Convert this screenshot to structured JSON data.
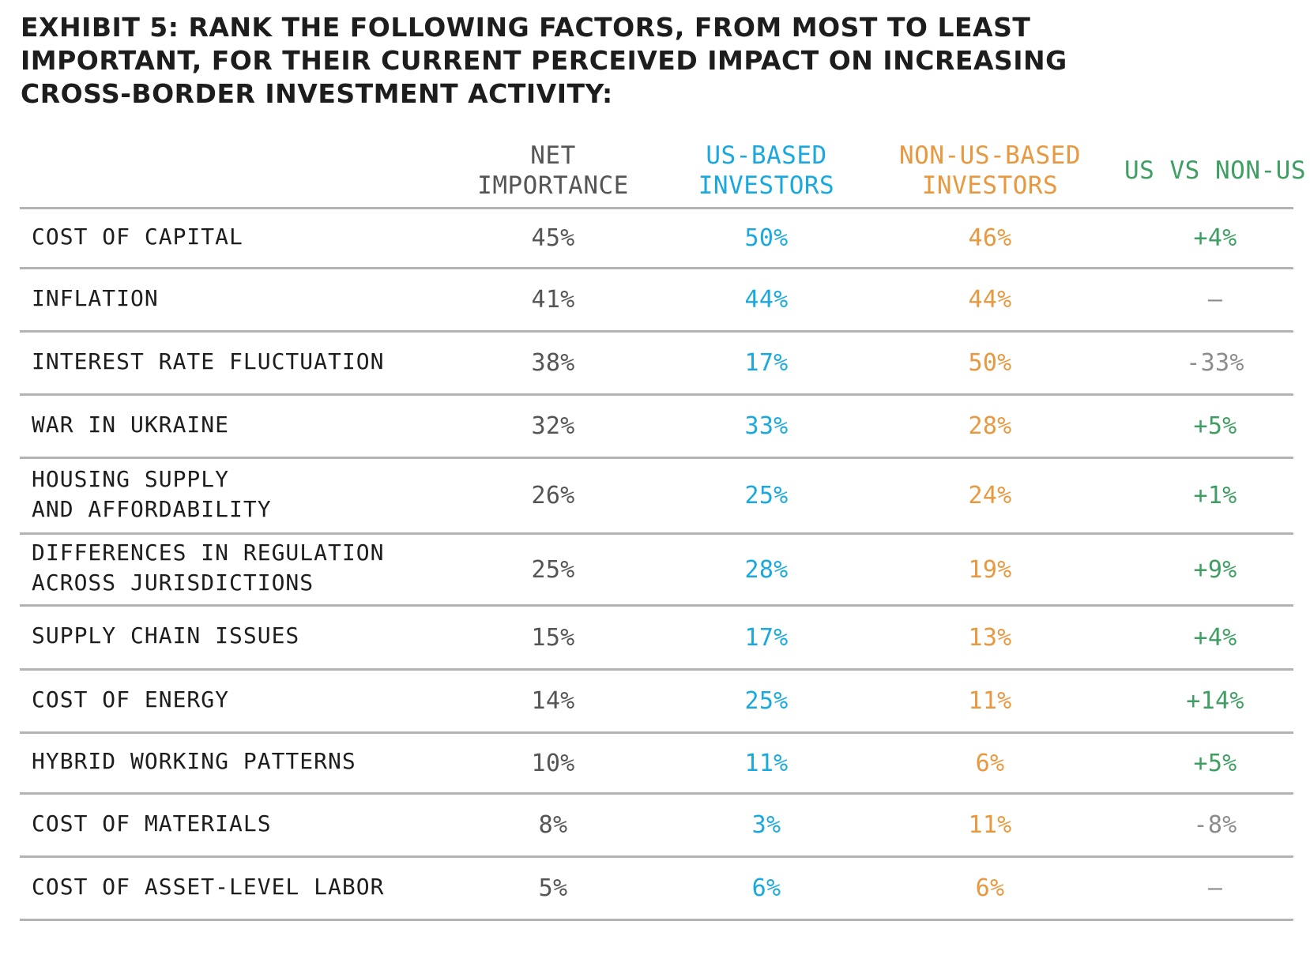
{
  "title": {
    "lines": [
      "EXHIBIT 5: RANK THE FOLLOWING FACTORS, FROM MOST TO LEAST",
      "IMPORTANT, FOR THEIR CURRENT PERCEIVED IMPACT ON INCREASING",
      "CROSS-BORDER INVESTMENT ACTIVITY:"
    ]
  },
  "colors": {
    "net": "#555555",
    "us": "#1aa9df",
    "non_us": "#e8993f",
    "diff_positive": "#3f9e62",
    "diff_negative": "#8c8c8c",
    "rule": "#b3b3b3"
  },
  "chart_data": {
    "type": "table",
    "title": "EXHIBIT 5: RANK THE FOLLOWING FACTORS, FROM MOST TO LEAST IMPORTANT, FOR THEIR CURRENT PERCEIVED IMPACT ON INCREASING CROSS-BORDER INVESTMENT ACTIVITY:",
    "columns": [
      {
        "key": "factor",
        "lines": [
          ""
        ]
      },
      {
        "key": "net",
        "lines": [
          "NET",
          "IMPORTANCE"
        ]
      },
      {
        "key": "us",
        "lines": [
          "US-BASED",
          "INVESTORS"
        ]
      },
      {
        "key": "non_us",
        "lines": [
          "NON-US-BASED",
          "INVESTORS"
        ]
      },
      {
        "key": "diff",
        "lines": [
          "US VS NON-US"
        ]
      }
    ],
    "rows": [
      {
        "factor": [
          "COST OF CAPITAL"
        ],
        "net": "45%",
        "us": "50%",
        "non_us": "46%",
        "diff": "+4%",
        "diff_sign": "pos"
      },
      {
        "factor": [
          "INFLATION"
        ],
        "net": "41%",
        "us": "44%",
        "non_us": "44%",
        "diff": "–",
        "diff_sign": "none"
      },
      {
        "factor": [
          "INTEREST RATE FLUCTUATION"
        ],
        "net": "38%",
        "us": "17%",
        "non_us": "50%",
        "diff": "-33%",
        "diff_sign": "neg"
      },
      {
        "factor": [
          "WAR IN UKRAINE"
        ],
        "net": "32%",
        "us": "33%",
        "non_us": "28%",
        "diff": "+5%",
        "diff_sign": "pos"
      },
      {
        "factor": [
          "HOUSING SUPPLY",
          "AND AFFORDABILITY"
        ],
        "net": "26%",
        "us": "25%",
        "non_us": "24%",
        "diff": "+1%",
        "diff_sign": "pos"
      },
      {
        "factor": [
          "DIFFERENCES IN REGULATION",
          "ACROSS JURISDICTIONS"
        ],
        "net": "25%",
        "us": "28%",
        "non_us": "19%",
        "diff": "+9%",
        "diff_sign": "pos"
      },
      {
        "factor": [
          "SUPPLY CHAIN ISSUES"
        ],
        "net": "15%",
        "us": "17%",
        "non_us": "13%",
        "diff": "+4%",
        "diff_sign": "pos"
      },
      {
        "factor": [
          "COST OF ENERGY"
        ],
        "net": "14%",
        "us": "25%",
        "non_us": "11%",
        "diff": "+14%",
        "diff_sign": "pos"
      },
      {
        "factor": [
          "HYBRID WORKING PATTERNS"
        ],
        "net": "10%",
        "us": "11%",
        "non_us": "6%",
        "diff": "+5%",
        "diff_sign": "pos"
      },
      {
        "factor": [
          "COST OF MATERIALS"
        ],
        "net": "8%",
        "us": "3%",
        "non_us": "11%",
        "diff": "-8%",
        "diff_sign": "neg"
      },
      {
        "factor": [
          "COST OF ASSET-LEVEL LABOR"
        ],
        "net": "5%",
        "us": "6%",
        "non_us": "6%",
        "diff": "–",
        "diff_sign": "none"
      }
    ]
  }
}
